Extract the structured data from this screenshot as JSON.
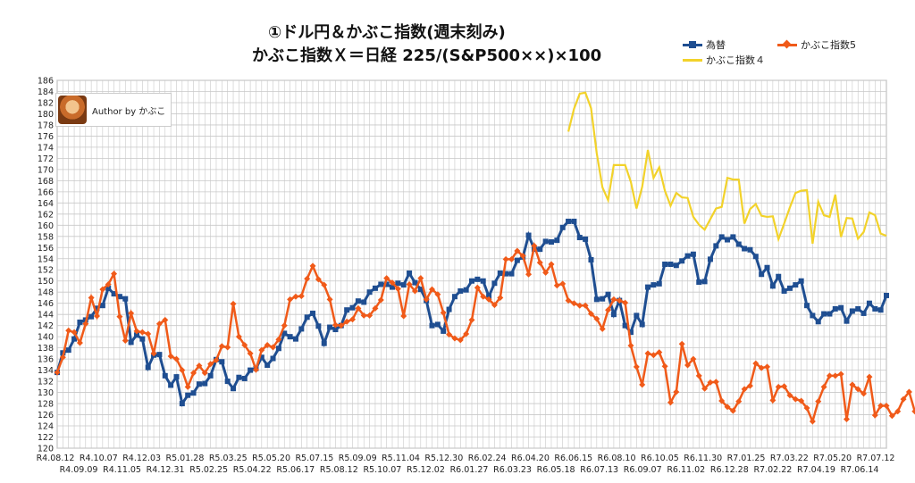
{
  "title": "①ドル円＆かぶこ指数(週末刻み)",
  "subtitle": "かぶこ指数Ｘ＝日経 225/(S&P500××)×100",
  "author": "Author by かぶこ",
  "legend": {
    "s1": "為替",
    "s2": "かぶこ指数5",
    "s3": "かぶこ指数４"
  },
  "colors": {
    "s1": "#1f4e91",
    "s2": "#f05a19",
    "s3": "#f2d22a",
    "grid": "#c8c8c8"
  },
  "chart_data": {
    "type": "line",
    "ylim": [
      120,
      186
    ],
    "ystep": 2,
    "grid": true,
    "legend_position": "top-right",
    "x_labels_top": [
      "R4.08.12",
      "R4.10.07",
      "R4.12.03",
      "R5.01.28",
      "R5.03.25",
      "R5.05.20",
      "R5.07.15",
      "R5.09.09",
      "R5.11.04",
      "R5.12.30",
      "R6.02.24",
      "R6.04.20",
      "R6.06.15",
      "R6.08.10",
      "R6.10.05",
      "R6.11.30",
      "R7.01.25",
      "R7.03.22",
      "R7.05.20",
      "R7.07.12"
    ],
    "x_labels_bottom": [
      "R4.09.09",
      "R4.11.05",
      "R4.12.31",
      "R5.02.25",
      "R5.04.22",
      "R5.06.17",
      "R5.08.12",
      "R5.10.07",
      "R5.12.02",
      "R6.01.27",
      "R6.03.23",
      "R6.05.18",
      "R6.07.13",
      "R6.09.07",
      "R6.11.02",
      "R6.12.28",
      "R7.02.22",
      "R7.04.19",
      "R7.06.14"
    ],
    "series": [
      {
        "name": "為替",
        "values": [
          133.6,
          137.1,
          137.6,
          139.6,
          142.6,
          143.0,
          143.6,
          145.1,
          145.6,
          148.7,
          147.7,
          147.2,
          146.8,
          139.0,
          140.3,
          139.6,
          134.5,
          136.7,
          136.8,
          133.0,
          131.3,
          132.8,
          128.0,
          129.5,
          129.9,
          131.5,
          131.6,
          133.0,
          135.9,
          135.5,
          132.0,
          130.7,
          132.7,
          132.5,
          134.0,
          134.3,
          136.3,
          134.9,
          136.1,
          137.9,
          140.6,
          140.0,
          139.6,
          141.4,
          143.5,
          144.2,
          141.9,
          138.8,
          141.7,
          141.3,
          142.0,
          144.8,
          145.2,
          146.4,
          146.2,
          148.0,
          148.7,
          149.4,
          149.4,
          148.9,
          149.6,
          149.3,
          151.4,
          149.7,
          148.5,
          146.5,
          142.0,
          142.2,
          141.0,
          144.9,
          147.2,
          148.2,
          148.4,
          150.0,
          150.3,
          150.0,
          147.2,
          149.6,
          151.4,
          151.3,
          151.3,
          153.7,
          154.3,
          158.2,
          155.7,
          155.7,
          157.1,
          157.0,
          157.3,
          159.6,
          160.7,
          160.7,
          157.8,
          157.5,
          153.8,
          146.7,
          146.8,
          147.6,
          144.0,
          146.5,
          142.0,
          140.8,
          143.8,
          142.2,
          148.9,
          149.3,
          149.5,
          153.0,
          153.0,
          152.8,
          153.6,
          154.5,
          154.8,
          149.8,
          149.9,
          153.9,
          156.3,
          157.9,
          157.4,
          157.9,
          156.6,
          155.8,
          155.6,
          154.4,
          151.2,
          152.4,
          149.1,
          150.8,
          148.2,
          148.7,
          149.3,
          150.0,
          145.6,
          143.8,
          142.7,
          144.1,
          144.1,
          145.0,
          145.2,
          142.8,
          144.6,
          145.0,
          144.2,
          146.0,
          145.0,
          144.8,
          147.4
        ]
      },
      {
        "name": "かぶこ指数5",
        "values": [
          133.6,
          136.3,
          141.1,
          140.8,
          138.9,
          142.3,
          147.0,
          143.7,
          148.5,
          149.4,
          151.3,
          143.6,
          139.3,
          144.2,
          141.0,
          140.8,
          140.5,
          137.0,
          142.3,
          143.0,
          136.5,
          136.0,
          134.0,
          131.0,
          133.5,
          134.8,
          133.5,
          135.1,
          135.8,
          138.3,
          138.1,
          145.9,
          140.0,
          138.5,
          137.0,
          134.1,
          137.6,
          138.5,
          138.1,
          139.5,
          142.0,
          146.7,
          147.2,
          147.3,
          150.4,
          152.7,
          150.3,
          149.3,
          146.7,
          142.1,
          142.0,
          142.7,
          143.1,
          145.1,
          143.8,
          143.8,
          145.1,
          146.6,
          150.5,
          149.7,
          148.6,
          143.7,
          149.4,
          148.2,
          150.5,
          146.7,
          148.5,
          147.6,
          144.3,
          140.4,
          139.7,
          139.4,
          140.5,
          143.0,
          148.8,
          147.2,
          146.7,
          145.7,
          147.0,
          153.9,
          153.9,
          155.4,
          154.5,
          151.2,
          156.3,
          153.3,
          151.5,
          153.0,
          149.2,
          149.5,
          146.5,
          146.0,
          145.6,
          145.6,
          144.1,
          143.2,
          141.4,
          144.8,
          146.7,
          146.5,
          146.1,
          138.4,
          134.6,
          131.4,
          137.0,
          136.7,
          137.2,
          134.7,
          128.2,
          130.1,
          138.7,
          134.9,
          136.0,
          133.0,
          130.7,
          131.8,
          131.9,
          128.5,
          127.4,
          126.7,
          128.4,
          130.6,
          131.2,
          135.2,
          134.4,
          134.6,
          128.6,
          131.0,
          131.1,
          129.5,
          128.8,
          128.5,
          127.2,
          124.8,
          128.4,
          131.0,
          133.0,
          133.0,
          133.3,
          125.2,
          131.4,
          130.6,
          129.8,
          132.8,
          125.9,
          127.6,
          127.6,
          125.8,
          126.6,
          128.8,
          130.1,
          126.6,
          126.4
        ]
      },
      {
        "name": "かぶこ指数４",
        "values": [
          176.8,
          180.9,
          183.6,
          183.8,
          181.0,
          172.9,
          166.8,
          164.5,
          170.8,
          170.8,
          170.8,
          167.8,
          163.0,
          166.9,
          173.5,
          168.5,
          170.4,
          166.2,
          163.5,
          165.8,
          165.0,
          164.9,
          161.5,
          160.1,
          159.2,
          161.1,
          163.0,
          163.3,
          168.5,
          168.2,
          168.2,
          160.3,
          162.9,
          163.8,
          161.7,
          161.5,
          161.6,
          157.5,
          160.3,
          163.2,
          165.8,
          166.2,
          166.3,
          156.7,
          164.2,
          161.8,
          161.5,
          165.5,
          157.9,
          161.3,
          161.2,
          157.6,
          158.8,
          162.3,
          161.8,
          158.5,
          158.1
        ]
      }
    ]
  }
}
